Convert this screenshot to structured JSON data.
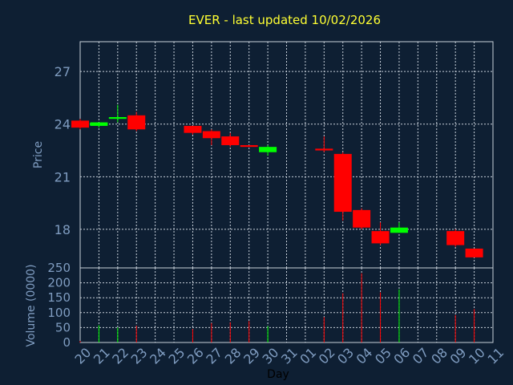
{
  "chart_data": [
    {
      "type": "candlestick",
      "title": "EVER - last updated 10/02/2026",
      "ylabel": "Price",
      "ylim": [
        15.8,
        28.7
      ],
      "yticks": [
        18,
        21,
        24,
        27
      ],
      "grid": true,
      "colors": {
        "up": "#00ff00",
        "down": "#ff0000"
      },
      "candles": [
        {
          "day": "20",
          "open": 24.2,
          "high": 24.3,
          "low": 23.7,
          "close": 23.8
        },
        {
          "day": "21",
          "open": 23.9,
          "high": 24.1,
          "low": 23.8,
          "close": 24.1
        },
        {
          "day": "22",
          "open": 24.3,
          "high": 25.1,
          "low": 24.1,
          "close": 24.4
        },
        {
          "day": "23",
          "open": 24.5,
          "high": 24.7,
          "low": 23.6,
          "close": 23.7
        },
        {
          "day": "26",
          "open": 23.9,
          "high": 23.9,
          "low": 23.4,
          "close": 23.5
        },
        {
          "day": "27",
          "open": 23.6,
          "high": 23.7,
          "low": 22.8,
          "close": 23.2
        },
        {
          "day": "28",
          "open": 23.3,
          "high": 23.5,
          "low": 22.7,
          "close": 22.8
        },
        {
          "day": "29",
          "open": 22.8,
          "high": 22.8,
          "low": 22.7,
          "close": 22.7
        },
        {
          "day": "30",
          "open": 22.4,
          "high": 22.8,
          "low": 22.2,
          "close": 22.7
        },
        {
          "day": "02",
          "open": 22.6,
          "high": 23.3,
          "low": 22.4,
          "close": 22.5
        },
        {
          "day": "03",
          "open": 22.3,
          "high": 22.4,
          "low": 18.5,
          "close": 19.0
        },
        {
          "day": "04",
          "open": 19.1,
          "high": 19.2,
          "low": 18.0,
          "close": 18.1
        },
        {
          "day": "05",
          "open": 17.9,
          "high": 18.4,
          "low": 17.1,
          "close": 17.2
        },
        {
          "day": "06",
          "open": 17.8,
          "high": 18.4,
          "low": 17.8,
          "close": 18.1
        },
        {
          "day": "09",
          "open": 17.9,
          "high": 18.0,
          "low": 17.0,
          "close": 17.1
        },
        {
          "day": "10",
          "open": 16.9,
          "high": 16.9,
          "low": 16.4,
          "close": 16.4
        }
      ]
    },
    {
      "type": "bar",
      "ylabel": "Volume (0000)",
      "xlabel": "Day",
      "ylim": [
        0,
        250
      ],
      "yticks": [
        0,
        50,
        100,
        150,
        200,
        250
      ],
      "grid": true,
      "categories": [
        "20",
        "21",
        "22",
        "23",
        "24",
        "25",
        "26",
        "27",
        "28",
        "29",
        "30",
        "31",
        "01",
        "02",
        "03",
        "04",
        "05",
        "06",
        "07",
        "08",
        "09",
        "10",
        "11"
      ],
      "bars": [
        {
          "day": "20",
          "value": 5,
          "color": "#ff0000"
        },
        {
          "day": "21",
          "value": 58,
          "color": "#00ff00"
        },
        {
          "day": "22",
          "value": 50,
          "color": "#00ff00"
        },
        {
          "day": "23",
          "value": 56,
          "color": "#ff0000"
        },
        {
          "day": "26",
          "value": 45,
          "color": "#ff0000"
        },
        {
          "day": "27",
          "value": 65,
          "color": "#ff0000"
        },
        {
          "day": "28",
          "value": 68,
          "color": "#ff0000"
        },
        {
          "day": "29",
          "value": 72,
          "color": "#ff0000"
        },
        {
          "day": "30",
          "value": 55,
          "color": "#00ff00"
        },
        {
          "day": "02",
          "value": 85,
          "color": "#ff0000"
        },
        {
          "day": "03",
          "value": 165,
          "color": "#ff0000"
        },
        {
          "day": "04",
          "value": 232,
          "color": "#ff0000"
        },
        {
          "day": "05",
          "value": 168,
          "color": "#ff0000"
        },
        {
          "day": "06",
          "value": 178,
          "color": "#00ff00"
        },
        {
          "day": "09",
          "value": 92,
          "color": "#ff0000"
        },
        {
          "day": "10",
          "value": 112,
          "color": "#ff0000"
        }
      ]
    }
  ]
}
